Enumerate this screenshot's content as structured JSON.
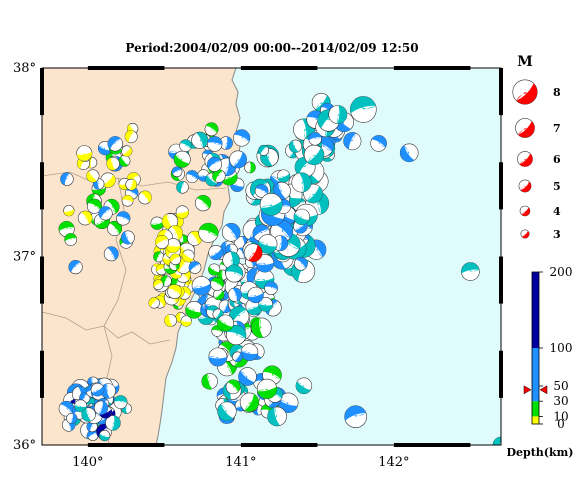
{
  "title": "Period:2004/02/09 00:00--2014/02/09 12:50",
  "axes": {
    "lon_range": [
      139.7,
      142.7
    ],
    "lat_range": [
      36.0,
      38.0
    ],
    "x_ticks": [
      {
        "value": 140,
        "label": "140°"
      },
      {
        "value": 141,
        "label": "141°"
      },
      {
        "value": 142,
        "label": "142°"
      }
    ],
    "y_ticks": [
      {
        "value": 38,
        "label": "38°"
      },
      {
        "value": 37,
        "label": "37°"
      },
      {
        "value": 36,
        "label": "36°"
      }
    ]
  },
  "colors": {
    "land": "#fbe5cc",
    "sea": "#e0fbfb",
    "coast": "#888888",
    "prefecture": "#b0a090",
    "depth_0_10": "#ffff00",
    "depth_10_30": "#00e000",
    "depth_30_100_cyan": "#00c0c0",
    "depth_30_100_blue": "#1e90ff",
    "depth_100_200": "#0000a0",
    "latest_event": "#ff0000"
  },
  "magnitude_legend": {
    "title": "M",
    "items": [
      {
        "label": "8",
        "m": 8
      },
      {
        "label": "7",
        "m": 7
      },
      {
        "label": "6",
        "m": 6
      },
      {
        "label": "5",
        "m": 5
      },
      {
        "label": "4",
        "m": 4
      },
      {
        "label": "3",
        "m": 3
      }
    ]
  },
  "depth_scale": {
    "title": "Depth(km)",
    "ticks": [
      {
        "value": 200,
        "label": "200"
      },
      {
        "value": 100,
        "label": "100"
      },
      {
        "value": 50,
        "label": "50"
      },
      {
        "value": 30,
        "label": "30"
      },
      {
        "value": 10,
        "label": "10"
      },
      {
        "value": 0,
        "label": "0"
      }
    ],
    "marker_depth": 45
  },
  "latest_event": {
    "lon": 141.08,
    "lat": 37.02,
    "m": 5.4,
    "depth": 45,
    "color": "#ff0000"
  }
}
